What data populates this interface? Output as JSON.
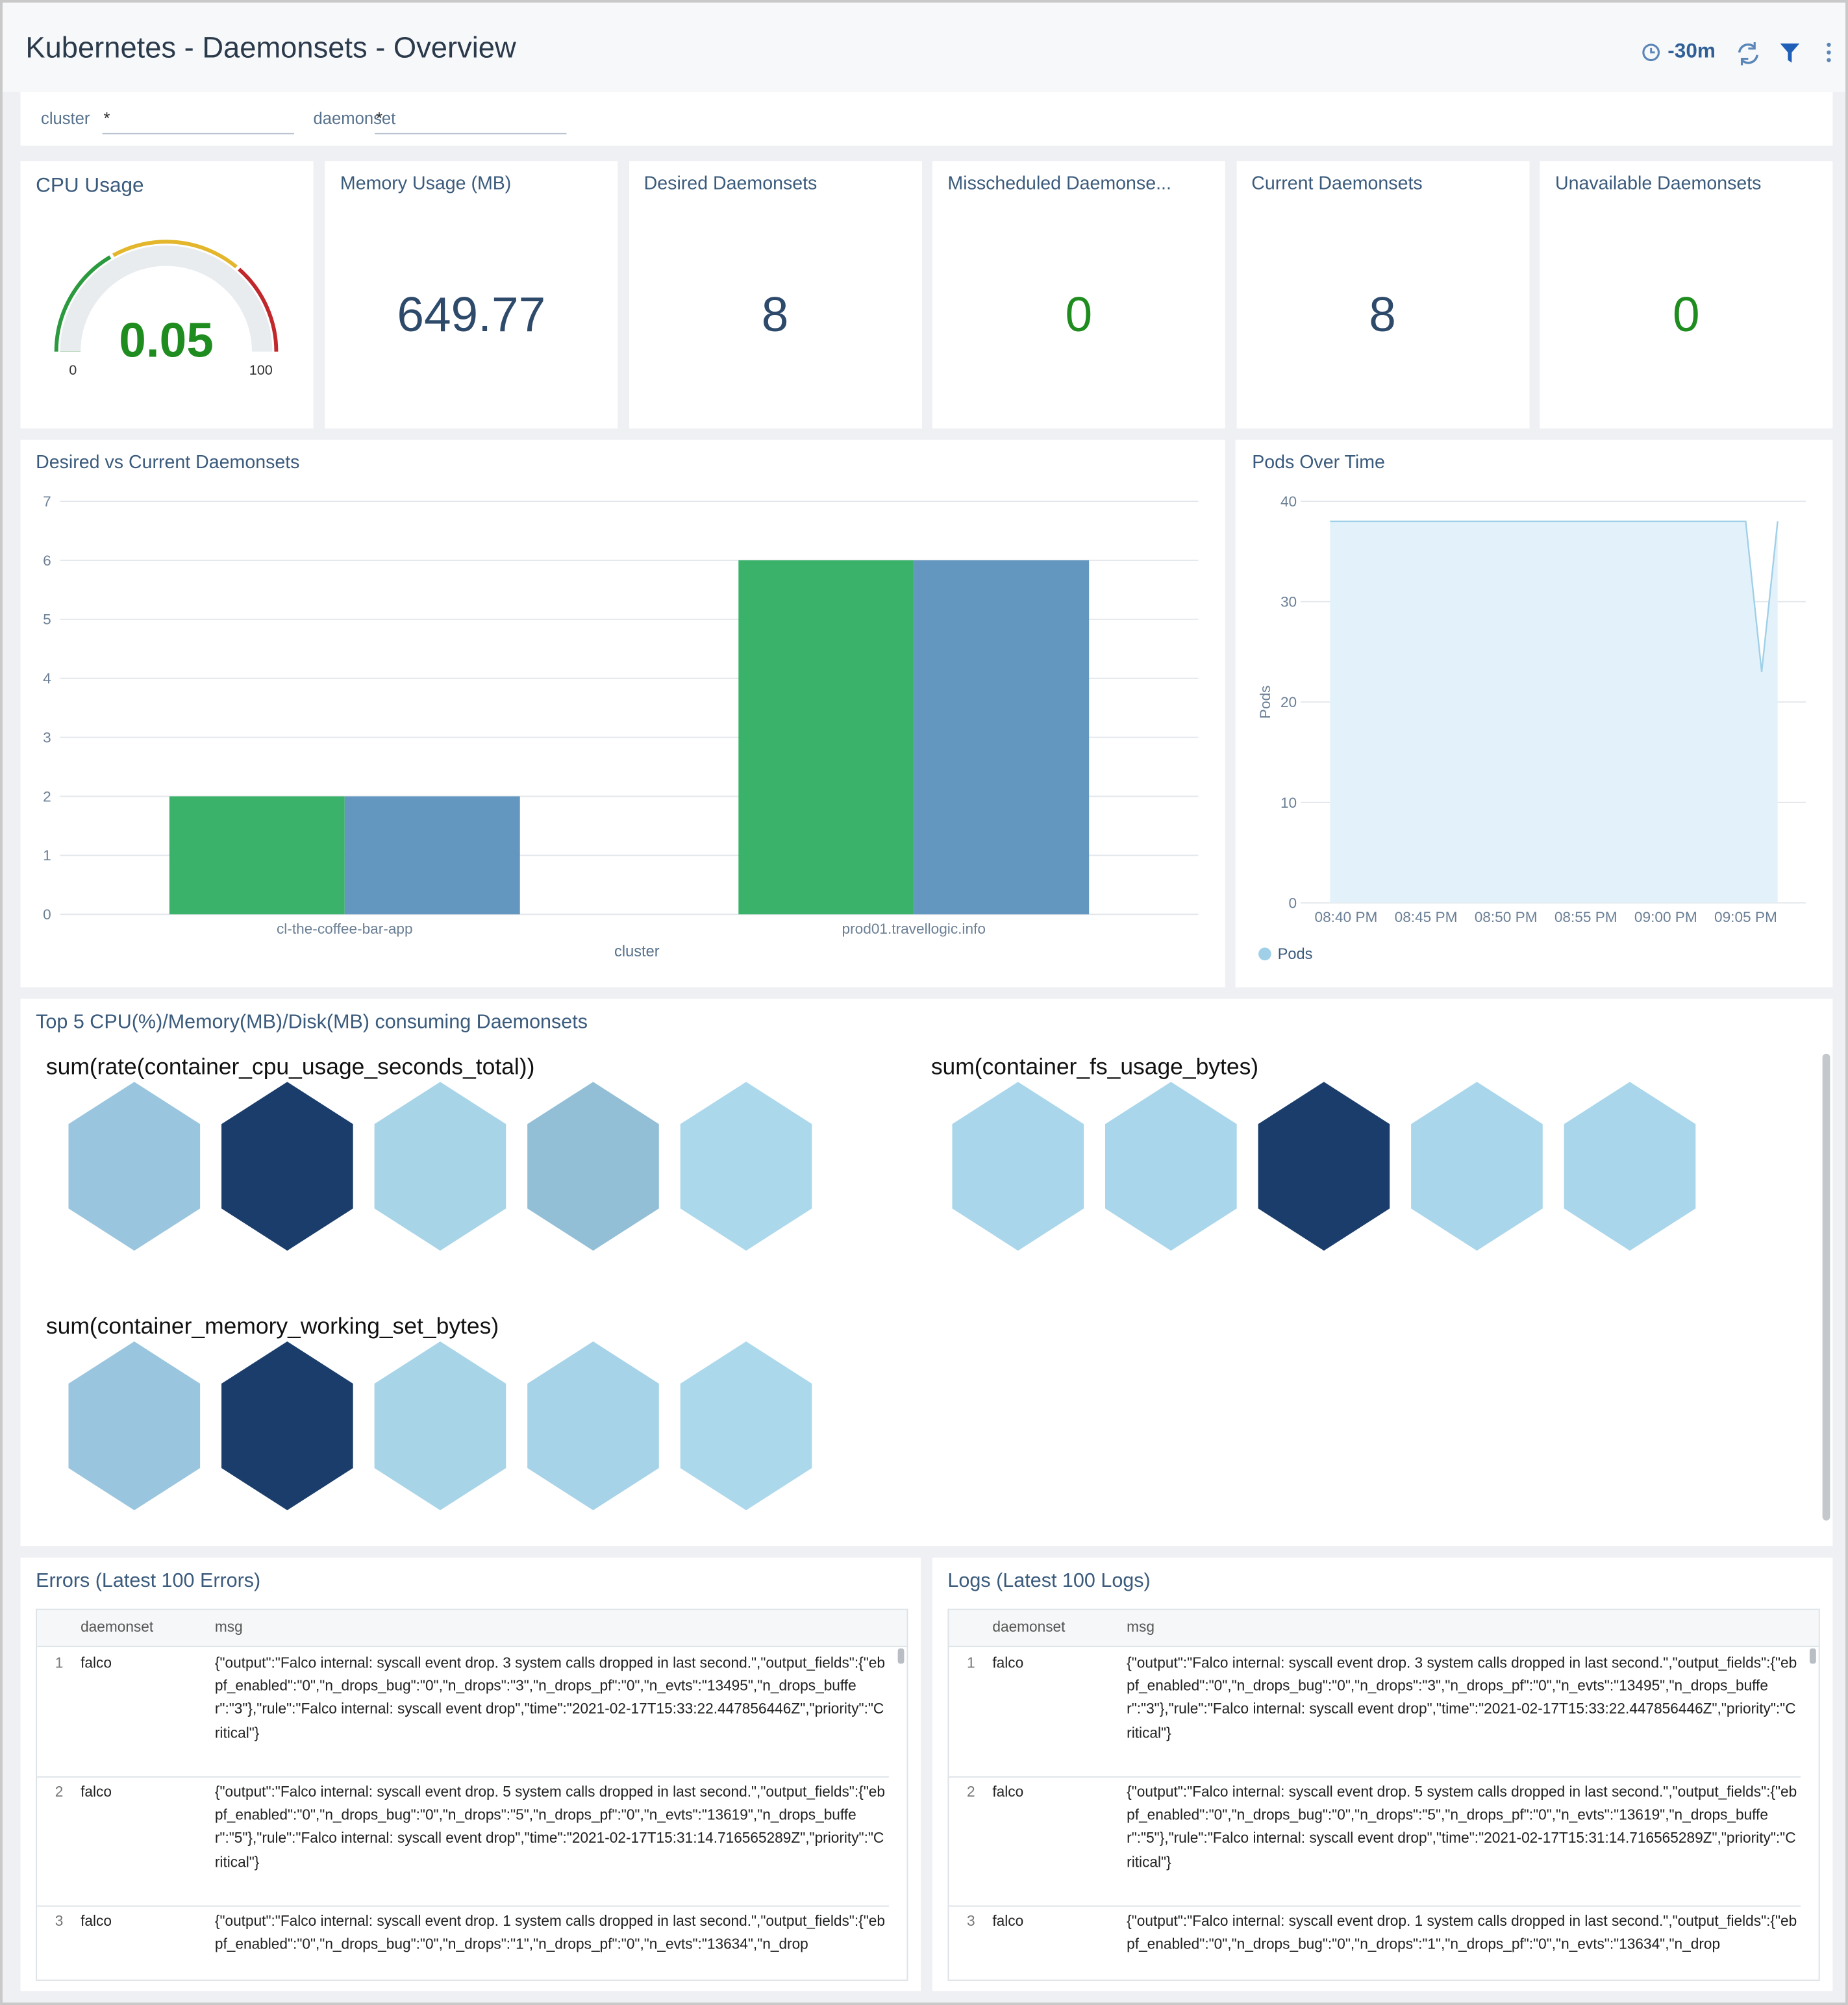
{
  "header": {
    "title": "Kubernetes - Daemonsets - Overview",
    "time_range": "-30m"
  },
  "filters": [
    {
      "label": "cluster",
      "value": "*"
    },
    {
      "label": "daemonset",
      "value": "*"
    }
  ],
  "gauge": {
    "title": "CPU Usage",
    "value": 0.05,
    "min": 0,
    "max": 100,
    "color": "#1e8c1e"
  },
  "stats": [
    {
      "title": "Memory Usage (MB)",
      "value": 649.77,
      "color": "#2e4a6b"
    },
    {
      "title": "Desired Daemonsets",
      "value": 8,
      "color": "#2e4a6b"
    },
    {
      "title": "Misscheduled Daemonse...",
      "value": 0,
      "color": "#1e8c1e"
    },
    {
      "title": "Current Daemonsets",
      "value": 8,
      "color": "#2e4a6b"
    },
    {
      "title": "Unavailable Daemonsets",
      "value": 0,
      "color": "#1e8c1e"
    }
  ],
  "bar_chart": {
    "type": "bar",
    "title": "Desired vs Current Daemonsets",
    "x_label": "cluster",
    "categories": [
      "cl-the-coffee-bar-app",
      "prod01.travellogic.info"
    ],
    "series": [
      {
        "color": "#3bb26a",
        "values": [
          2,
          6
        ]
      },
      {
        "color": "#6497bf",
        "values": [
          2,
          6
        ]
      }
    ],
    "ylim": [
      0,
      7
    ],
    "yticks": [
      0,
      1,
      2,
      3,
      4,
      5,
      6,
      7
    ],
    "grid": true
  },
  "line_chart": {
    "type": "area",
    "title": "Pods Over Time",
    "y_label": "Pods",
    "x": [
      "08:39 PM",
      "09:05 PM",
      "09:06 PM",
      "09:07 PM"
    ],
    "series": [
      {
        "name": "Pods",
        "color": "#9fd0e8",
        "values": [
          38,
          38,
          23,
          38
        ]
      }
    ],
    "xlim": [
      "08:39 PM",
      "09:07 PM"
    ],
    "xticks": [
      "08:40 PM",
      "08:45 PM",
      "08:50 PM",
      "08:55 PM",
      "09:00 PM",
      "09:05 PM"
    ],
    "ylim": [
      0,
      40
    ],
    "yticks": [
      0,
      10,
      20,
      30,
      40
    ],
    "grid": true,
    "legend": "bottom-left"
  },
  "honeycomb": {
    "title": "Top 5 CPU(%)/Memory(MB)/Disk(MB) consuming Daemonsets",
    "groups": [
      {
        "name": "sum(rate(container_cpu_usage_seconds_total))",
        "colors": [
          "#9ac5de",
          "#1b3d6b",
          "#a8d4e8",
          "#93bfd6",
          "#acd8ec"
        ]
      },
      {
        "name": "sum(container_fs_usage_bytes)",
        "colors": [
          "#a9d6ea",
          "#a9d6ea",
          "#1b3d6b",
          "#a9d6ea",
          "#a9d6ea"
        ]
      },
      {
        "name": "sum(container_memory_working_set_bytes)",
        "colors": [
          "#9ac5de",
          "#1b3d6b",
          "#a8d4e8",
          "#a7d3e8",
          "#acd8ec"
        ]
      }
    ]
  },
  "errors": {
    "title": "Errors (Latest 100 Errors)",
    "columns": [
      "daemonset",
      "msg"
    ],
    "rows": [
      [
        1,
        "falco",
        "{\"output\":\"Falco internal: syscall event drop. 3 system calls dropped in last second.\",\"output_fields\":{\"ebpf_enabled\":\"0\",\"n_drops_bug\":\"0\",\"n_drops\":\"3\",\"n_drops_pf\":\"0\",\"n_evts\":\"13495\",\"n_drops_buffer\":\"3\"},\"rule\":\"Falco internal: syscall event drop\",\"time\":\"2021-02-17T15:33:22.447856446Z\",\"priority\":\"Critical\"}"
      ],
      [
        2,
        "falco",
        "{\"output\":\"Falco internal: syscall event drop. 5 system calls dropped in last second.\",\"output_fields\":{\"ebpf_enabled\":\"0\",\"n_drops_bug\":\"0\",\"n_drops\":\"5\",\"n_drops_pf\":\"0\",\"n_evts\":\"13619\",\"n_drops_buffer\":\"5\"},\"rule\":\"Falco internal: syscall event drop\",\"time\":\"2021-02-17T15:31:14.716565289Z\",\"priority\":\"Critical\"}"
      ],
      [
        3,
        "falco",
        "{\"output\":\"Falco internal: syscall event drop. 1 system calls dropped in last second.\",\"output_fields\":{\"ebpf_enabled\":\"0\",\"n_drops_bug\":\"0\",\"n_drops\":\"1\",\"n_drops_pf\":\"0\",\"n_evts\":\"13634\",\"n_drop"
      ]
    ]
  },
  "logs": {
    "title": "Logs (Latest 100 Logs)",
    "columns": [
      "daemonset",
      "msg"
    ],
    "rows": [
      [
        1,
        "falco",
        "{\"output\":\"Falco internal: syscall event drop. 3 system calls dropped in last second.\",\"output_fields\":{\"ebpf_enabled\":\"0\",\"n_drops_bug\":\"0\",\"n_drops\":\"3\",\"n_drops_pf\":\"0\",\"n_evts\":\"13495\",\"n_drops_buffer\":\"3\"},\"rule\":\"Falco internal: syscall event drop\",\"time\":\"2021-02-17T15:33:22.447856446Z\",\"priority\":\"Critical\"}"
      ],
      [
        2,
        "falco",
        "{\"output\":\"Falco internal: syscall event drop. 5 system calls dropped in last second.\",\"output_fields\":{\"ebpf_enabled\":\"0\",\"n_drops_bug\":\"0\",\"n_drops\":\"5\",\"n_drops_pf\":\"0\",\"n_evts\":\"13619\",\"n_drops_buffer\":\"5\"},\"rule\":\"Falco internal: syscall event drop\",\"time\":\"2021-02-17T15:31:14.716565289Z\",\"priority\":\"Critical\"}"
      ],
      [
        3,
        "falco",
        "{\"output\":\"Falco internal: syscall event drop. 1 system calls dropped in last second.\",\"output_fields\":{\"ebpf_enabled\":\"0\",\"n_drops_bug\":\"0\",\"n_drops\":\"1\",\"n_drops_pf\":\"0\",\"n_evts\":\"13634\",\"n_drop"
      ]
    ]
  }
}
